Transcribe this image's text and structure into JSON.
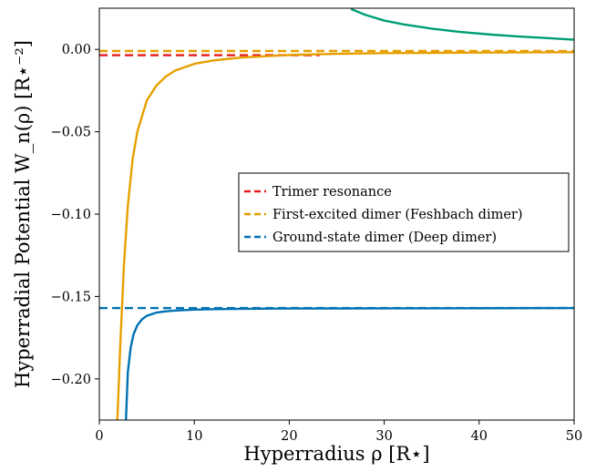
{
  "chart_data": {
    "type": "line",
    "xlabel": "Hyperradius ρ [R⋆]",
    "ylabel": "Hyperradial Potential W_n(ρ) [R⋆⁻²]",
    "xlim": [
      0,
      50
    ],
    "ylim": [
      -0.225,
      0.025
    ],
    "xticks": [
      0,
      10,
      20,
      30,
      40,
      50
    ],
    "xtick_labels": [
      "0",
      "10",
      "20",
      "30",
      "40",
      "50"
    ],
    "yticks": [
      0.0,
      -0.05,
      -0.1,
      -0.15,
      -0.2
    ],
    "ytick_labels": [
      "0.00",
      "−0.05",
      "−0.10",
      "−0.15",
      "−0.20"
    ],
    "grid": false,
    "legend_position": "center-right",
    "series": [
      {
        "name": "Trimer resonance",
        "style": "dashed",
        "color": "#e41a1c",
        "x": [
          0,
          23.2
        ],
        "y": [
          -0.0035,
          -0.0035
        ]
      },
      {
        "name": "First-excited dimer (Feshbach dimer)",
        "style": "dashed",
        "color": "#e69f00",
        "x": [
          0,
          50
        ],
        "y": [
          -0.001,
          -0.001
        ]
      },
      {
        "name": "Ground-state dimer (Deep dimer)",
        "style": "dashed",
        "color": "#0072b2",
        "x": [
          0,
          50
        ],
        "y": [
          -0.157,
          -0.157
        ]
      },
      {
        "style": "solid",
        "color": "#e69f00",
        "x": [
          1.9,
          2.2,
          2.6,
          3.0,
          3.5,
          4.0,
          5.0,
          6.0,
          7.0,
          8.0,
          10.0,
          12.0,
          15.0,
          20.0,
          25.0,
          30.0,
          40.0,
          50.0
        ],
        "y": [
          -0.225,
          -0.18,
          -0.13,
          -0.095,
          -0.067,
          -0.05,
          -0.031,
          -0.022,
          -0.0165,
          -0.0128,
          -0.0088,
          -0.0067,
          -0.0049,
          -0.0034,
          -0.0027,
          -0.0023,
          -0.0019,
          -0.0017
        ]
      },
      {
        "style": "solid",
        "color": "#0072b2",
        "x": [
          2.8,
          3.0,
          3.3,
          3.6,
          4.0,
          4.5,
          5.0,
          6.0,
          7.0,
          8.0,
          10.0,
          12.0,
          15.0,
          20.0,
          30.0,
          40.0,
          50.0
        ],
        "y": [
          -0.225,
          -0.196,
          -0.181,
          -0.173,
          -0.1675,
          -0.1638,
          -0.1617,
          -0.1598,
          -0.159,
          -0.1585,
          -0.158,
          -0.1577,
          -0.1575,
          -0.1573,
          -0.1572,
          -0.1571,
          -0.157
        ]
      },
      {
        "style": "solid",
        "color": "#009e73",
        "x": [
          26.5,
          28,
          30,
          32,
          35,
          38,
          41,
          44,
          47,
          50
        ],
        "y": [
          0.0245,
          0.021,
          0.0175,
          0.0152,
          0.0126,
          0.0106,
          0.0091,
          0.0079,
          0.0069,
          0.0059
        ]
      }
    ]
  }
}
